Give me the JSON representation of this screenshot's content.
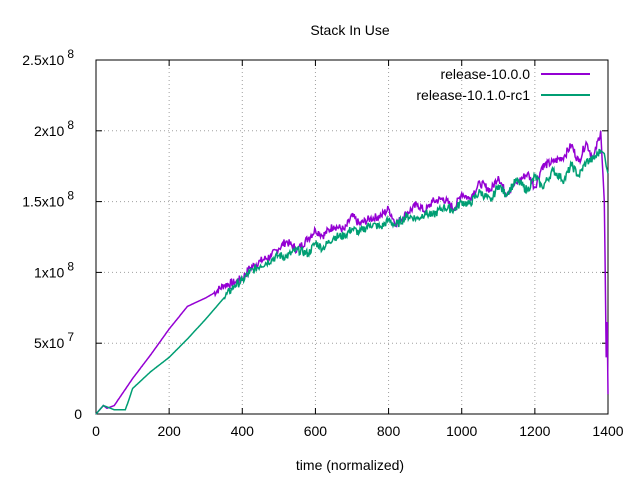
{
  "chart_data": {
    "type": "line",
    "title": "Stack In Use",
    "xlabel": "time (normalized)",
    "ylabel": "",
    "xlim": [
      0,
      1400
    ],
    "ylim": [
      0,
      250000000
    ],
    "grid": true,
    "legend_position": "top-right",
    "xticks": [
      {
        "value": 0,
        "label": "0"
      },
      {
        "value": 200,
        "label": "200"
      },
      {
        "value": 400,
        "label": "400"
      },
      {
        "value": 600,
        "label": "600"
      },
      {
        "value": 800,
        "label": "800"
      },
      {
        "value": 1000,
        "label": "1000"
      },
      {
        "value": 1200,
        "label": "1200"
      },
      {
        "value": 1400,
        "label": "1400"
      }
    ],
    "yticks": [
      {
        "value": 0,
        "label": "0",
        "base": "0",
        "exp": ""
      },
      {
        "value": 50000000,
        "label": "5x10 7",
        "base": "5x10",
        "exp": "7"
      },
      {
        "value": 100000000,
        "label": "1x10 8",
        "base": "1x10",
        "exp": "8"
      },
      {
        "value": 150000000,
        "label": "1.5x10 8",
        "base": "1.5x10",
        "exp": "8"
      },
      {
        "value": 200000000,
        "label": "2x10 8",
        "base": "2x10",
        "exp": "8"
      },
      {
        "value": 250000000,
        "label": "2.5x10 8",
        "base": "2.5x10",
        "exp": "8"
      }
    ],
    "series": [
      {
        "name": "release-10.0.0",
        "color": "#9400d3",
        "x": [
          0,
          10,
          20,
          30,
          40,
          50,
          100,
          150,
          200,
          250,
          300,
          320,
          350,
          380,
          400,
          420,
          450,
          480,
          500,
          520,
          550,
          580,
          600,
          620,
          650,
          680,
          700,
          720,
          750,
          780,
          800,
          820,
          850,
          880,
          900,
          920,
          950,
          980,
          1000,
          1020,
          1050,
          1080,
          1100,
          1120,
          1150,
          1180,
          1200,
          1220,
          1250,
          1280,
          1300,
          1320,
          1340,
          1360,
          1380,
          1390,
          1395,
          1398,
          1400
        ],
        "y": [
          0,
          3000000,
          6000000,
          4000000,
          5000000,
          6000000,
          25000000,
          42000000,
          60000000,
          76000000,
          82000000,
          85000000,
          91000000,
          93000000,
          96000000,
          103000000,
          108000000,
          112000000,
          117000000,
          122000000,
          116000000,
          124000000,
          130000000,
          126000000,
          133000000,
          130000000,
          140000000,
          134000000,
          138000000,
          140000000,
          145000000,
          134000000,
          142000000,
          148000000,
          143000000,
          150000000,
          152000000,
          145000000,
          156000000,
          152000000,
          163000000,
          158000000,
          168000000,
          156000000,
          163000000,
          170000000,
          160000000,
          175000000,
          178000000,
          182000000,
          190000000,
          178000000,
          192000000,
          180000000,
          200000000,
          150000000,
          40000000,
          65000000,
          14000000
        ]
      },
      {
        "name": "release-10.1.0-rc1",
        "color": "#009e73",
        "x": [
          0,
          10,
          20,
          30,
          40,
          50,
          60,
          70,
          80,
          90,
          100,
          150,
          200,
          250,
          300,
          350,
          380,
          400,
          420,
          450,
          480,
          500,
          520,
          550,
          580,
          600,
          620,
          650,
          680,
          700,
          720,
          750,
          780,
          800,
          820,
          850,
          880,
          900,
          920,
          950,
          980,
          1000,
          1020,
          1050,
          1080,
          1100,
          1120,
          1150,
          1180,
          1200,
          1220,
          1250,
          1280,
          1300,
          1320,
          1340,
          1360,
          1380,
          1390,
          1395,
          1398,
          1400
        ],
        "y": [
          0,
          3000000,
          6000000,
          5000000,
          4000000,
          3000000,
          3000000,
          3000000,
          3000000,
          10000000,
          18000000,
          30000000,
          40000000,
          53000000,
          67000000,
          82000000,
          91000000,
          94000000,
          100000000,
          105000000,
          109000000,
          112000000,
          111000000,
          116000000,
          113000000,
          121000000,
          117000000,
          125000000,
          126000000,
          131000000,
          128000000,
          134000000,
          132000000,
          137000000,
          133000000,
          140000000,
          138000000,
          142000000,
          140000000,
          146000000,
          144000000,
          150000000,
          148000000,
          157000000,
          150000000,
          162000000,
          155000000,
          165000000,
          158000000,
          168000000,
          160000000,
          172000000,
          165000000,
          176000000,
          168000000,
          178000000,
          180000000,
          186000000,
          184000000,
          175000000,
          172000000,
          170000000
        ]
      }
    ]
  }
}
